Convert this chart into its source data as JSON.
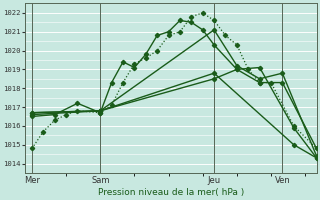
{
  "xlabel": "Pression niveau de la mer( hPa )",
  "bg_color": "#c8e8e0",
  "grid_color": "#ffffff",
  "line_color": "#1a5c1a",
  "ylim": [
    1013.5,
    1022.5
  ],
  "yticks": [
    1014,
    1015,
    1016,
    1017,
    1018,
    1019,
    1020,
    1021,
    1022
  ],
  "day_labels": [
    "Mer",
    "Sam",
    "Jeu",
    "Ven"
  ],
  "day_positions": [
    0,
    3,
    8,
    11
  ],
  "vline_positions": [
    0,
    3,
    8,
    11
  ],
  "xlim": [
    -0.3,
    12.5
  ],
  "lines": [
    {
      "x": [
        0,
        0.5,
        1.0,
        1.5,
        2.0,
        3.0,
        3.5,
        4.0,
        4.5,
        5.0,
        5.5,
        6.0,
        6.5,
        7.0,
        7.5,
        8.0,
        8.5,
        9.0,
        9.5,
        10.0,
        10.5,
        11.5,
        12.5
      ],
      "y": [
        1014.8,
        1015.7,
        1016.3,
        1016.6,
        1016.8,
        1016.7,
        1017.1,
        1018.3,
        1019.3,
        1019.6,
        1020.0,
        1020.8,
        1021.0,
        1021.8,
        1022.0,
        1021.6,
        1020.8,
        1020.3,
        1019.0,
        1018.3,
        1018.3,
        1016.0,
        1014.8
      ],
      "linestyle": "dotted",
      "linewidth": 0.9
    },
    {
      "x": [
        0,
        1.0,
        2.0,
        3.0,
        3.5,
        4.0,
        4.5,
        5.0,
        5.5,
        6.0,
        6.5,
        7.0,
        7.5,
        8.0,
        9.0,
        10.0,
        11.0,
        12.5
      ],
      "y": [
        1016.5,
        1016.6,
        1017.2,
        1016.7,
        1018.3,
        1019.4,
        1019.1,
        1019.8,
        1020.8,
        1021.0,
        1021.6,
        1021.5,
        1021.1,
        1020.3,
        1019.0,
        1018.3,
        1018.3,
        1014.8
      ],
      "linestyle": "solid",
      "linewidth": 1.0
    },
    {
      "x": [
        0,
        3.0,
        8.0,
        9.0,
        10.0,
        11.0,
        12.5
      ],
      "y": [
        1016.7,
        1016.8,
        1021.1,
        1019.2,
        1018.5,
        1018.8,
        1014.4
      ],
      "linestyle": "solid",
      "linewidth": 1.0
    },
    {
      "x": [
        0,
        3.0,
        8.0,
        9.0,
        10.0,
        11.5,
        12.5
      ],
      "y": [
        1016.6,
        1016.8,
        1018.5,
        1019.0,
        1019.1,
        1015.9,
        1014.3
      ],
      "linestyle": "solid",
      "linewidth": 1.0
    },
    {
      "x": [
        0,
        3.0,
        8.0,
        11.5,
        12.5
      ],
      "y": [
        1016.7,
        1016.8,
        1018.8,
        1015.0,
        1014.3
      ],
      "linestyle": "solid",
      "linewidth": 1.0
    }
  ]
}
